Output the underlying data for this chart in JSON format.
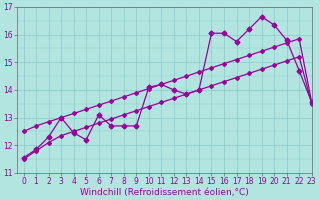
{
  "background_color": "#b3e5e0",
  "grid_color": "#88cccc",
  "line_color": "#990099",
  "xlabel": "Windchill (Refroidissement éolien,°C)",
  "xlim": [
    -0.5,
    23
  ],
  "ylim": [
    11,
    17
  ],
  "yticks": [
    11,
    12,
    13,
    14,
    15,
    16,
    17
  ],
  "xticks": [
    0,
    1,
    2,
    3,
    4,
    5,
    6,
    7,
    8,
    9,
    10,
    11,
    12,
    13,
    14,
    15,
    16,
    17,
    18,
    19,
    20,
    21,
    22,
    23
  ],
  "line1_x": [
    0,
    1,
    2,
    3,
    4,
    5,
    6,
    7,
    8,
    9,
    10,
    11,
    12,
    13,
    14,
    15,
    16,
    17,
    18,
    19,
    20,
    21,
    22,
    23
  ],
  "line1_y": [
    11.5,
    11.8,
    12.1,
    12.35,
    12.5,
    12.65,
    12.8,
    12.95,
    13.1,
    13.25,
    13.4,
    13.55,
    13.7,
    13.85,
    14.0,
    14.15,
    14.3,
    14.45,
    14.6,
    14.75,
    14.9,
    15.05,
    15.2,
    13.5
  ],
  "line2_x": [
    0,
    1,
    2,
    3,
    4,
    5,
    6,
    7,
    8,
    9,
    10,
    11,
    12,
    13,
    14,
    15,
    16,
    17,
    18,
    19,
    20,
    21,
    22,
    23
  ],
  "line2_y": [
    11.55,
    11.85,
    12.3,
    13.0,
    12.45,
    12.2,
    13.1,
    12.7,
    12.7,
    12.7,
    14.1,
    14.2,
    14.0,
    13.85,
    14.0,
    16.05,
    16.05,
    15.75,
    16.2,
    16.65,
    16.35,
    15.8,
    14.7,
    13.55
  ],
  "line3_x": [
    0,
    1,
    2,
    3,
    4,
    5,
    6,
    7,
    8,
    9,
    10,
    11,
    12,
    13,
    14,
    15,
    16,
    17,
    18,
    19,
    20,
    21,
    22,
    23
  ],
  "line3_y": [
    12.5,
    12.7,
    12.85,
    13.0,
    13.15,
    13.3,
    13.45,
    13.6,
    13.75,
    13.9,
    14.05,
    14.2,
    14.35,
    14.5,
    14.65,
    14.8,
    14.95,
    15.1,
    15.25,
    15.4,
    15.55,
    15.7,
    15.85,
    13.55
  ],
  "marker_size": 2.5,
  "line_width": 0.9,
  "tick_fontsize": 5.5,
  "xlabel_fontsize": 6.5
}
